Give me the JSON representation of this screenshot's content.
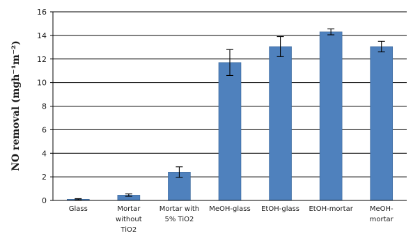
{
  "chart_data": {
    "type": "bar",
    "categories": [
      [
        "Glass"
      ],
      [
        "Mortar",
        "without",
        "TiO2"
      ],
      [
        "Mortar with",
        "5% TiO2"
      ],
      [
        "MeOH-glass"
      ],
      [
        "EtOH-glass"
      ],
      [
        "EtOH-mortar"
      ],
      [
        "MeOH-",
        "mortar"
      ]
    ],
    "values": [
      0.1,
      0.45,
      2.4,
      11.7,
      13.05,
      14.3,
      13.05
    ],
    "errors": [
      0.05,
      0.1,
      0.45,
      1.1,
      0.85,
      0.25,
      0.45
    ],
    "ylabel": "NO removal (mgh⁻¹m⁻²)",
    "ylim": [
      0,
      16
    ],
    "yticks": [
      0,
      2,
      4,
      6,
      8,
      10,
      12,
      14,
      16
    ],
    "grid": true,
    "bar_color": "#4F81BD",
    "bar_edge_color": "#3A6698"
  }
}
